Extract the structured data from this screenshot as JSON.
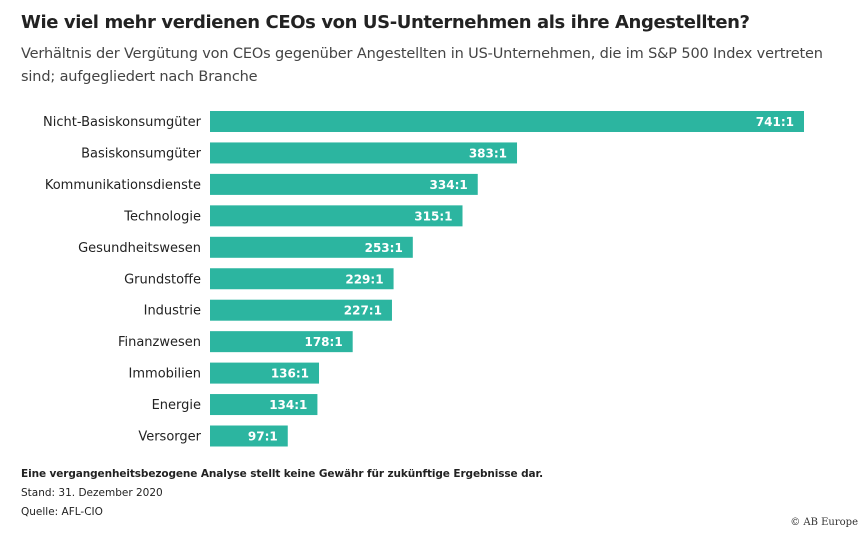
{
  "chart_data": {
    "type": "bar",
    "orientation": "horizontal",
    "title": "Wie viel mehr verdienen CEOs von US-Unternehmen als ihre Angestellten?",
    "subtitle": "Verhältnis der Vergütung von CEOs gegenüber Angestellten in US-Unternehmen, die im S&P 500 Index vertreten sind; aufgegliedert nach Branche",
    "categories": [
      "Nicht-Basiskonsumgüter",
      "Basiskonsumgüter",
      "Kommunikationsdienste",
      "Technologie",
      "Gesundheitswesen",
      "Grundstoffe",
      "Industrie",
      "Finanzwesen",
      "Immobilien",
      "Energie",
      "Versorger"
    ],
    "values": [
      741,
      383,
      334,
      315,
      253,
      229,
      227,
      178,
      136,
      134,
      97
    ],
    "value_labels": [
      "741:1",
      "383:1",
      "334:1",
      "315:1",
      "253:1",
      "229:1",
      "227:1",
      "178:1",
      "136:1",
      "134:1",
      "97:1"
    ],
    "xlim": [
      0,
      741
    ],
    "xlabel": "",
    "ylabel": "",
    "grid": false,
    "legend": "none",
    "bar_color": "#2cb5a0"
  },
  "footer": {
    "disclaimer": "Eine vergangenheitsbezogene Analyse stellt keine Gewähr für zukünftige Ergebnisse dar.",
    "date": "Stand: 31. Dezember 2020",
    "source": "Quelle: AFL-CIO",
    "copyright": "© AB Europe"
  }
}
